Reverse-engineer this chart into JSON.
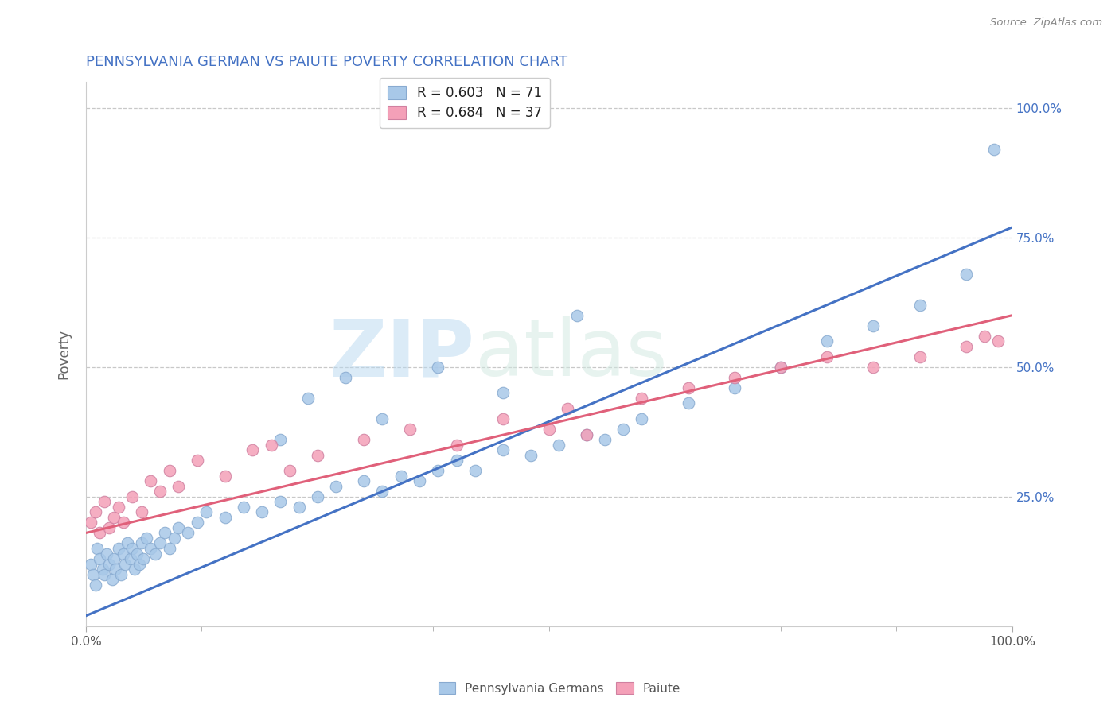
{
  "title": "PENNSYLVANIA GERMAN VS PAIUTE POVERTY CORRELATION CHART",
  "source_text": "Source: ZipAtlas.com",
  "ylabel": "Poverty",
  "watermark_zip": "ZIP",
  "watermark_atlas": "atlas",
  "xlim": [
    0.0,
    1.0
  ],
  "ylim": [
    0.0,
    1.05
  ],
  "blue_color": "#a8c8e8",
  "blue_edge": "#88aad0",
  "pink_color": "#f4a0b8",
  "pink_edge": "#d080a0",
  "line_blue": "#4472c4",
  "line_pink": "#e0607a",
  "title_color": "#4472c4",
  "title_fontsize": 13,
  "background_color": "#ffffff",
  "blue_line_x": [
    0.0,
    1.0
  ],
  "blue_line_y": [
    0.02,
    0.77
  ],
  "pink_line_x": [
    0.0,
    1.0
  ],
  "pink_line_y": [
    0.18,
    0.6
  ],
  "blue_scatter_x": [
    0.005,
    0.008,
    0.01,
    0.012,
    0.015,
    0.018,
    0.02,
    0.022,
    0.025,
    0.028,
    0.03,
    0.032,
    0.035,
    0.038,
    0.04,
    0.042,
    0.045,
    0.048,
    0.05,
    0.052,
    0.055,
    0.058,
    0.06,
    0.062,
    0.065,
    0.07,
    0.075,
    0.08,
    0.085,
    0.09,
    0.095,
    0.1,
    0.11,
    0.12,
    0.13,
    0.15,
    0.17,
    0.19,
    0.21,
    0.23,
    0.25,
    0.27,
    0.3,
    0.32,
    0.34,
    0.36,
    0.38,
    0.4,
    0.42,
    0.45,
    0.48,
    0.51,
    0.54,
    0.56,
    0.58,
    0.6,
    0.65,
    0.7,
    0.75,
    0.8,
    0.85,
    0.9,
    0.95,
    0.98,
    0.53,
    0.45,
    0.38,
    0.32,
    0.28,
    0.24,
    0.21
  ],
  "blue_scatter_y": [
    0.12,
    0.1,
    0.08,
    0.15,
    0.13,
    0.11,
    0.1,
    0.14,
    0.12,
    0.09,
    0.13,
    0.11,
    0.15,
    0.1,
    0.14,
    0.12,
    0.16,
    0.13,
    0.15,
    0.11,
    0.14,
    0.12,
    0.16,
    0.13,
    0.17,
    0.15,
    0.14,
    0.16,
    0.18,
    0.15,
    0.17,
    0.19,
    0.18,
    0.2,
    0.22,
    0.21,
    0.23,
    0.22,
    0.24,
    0.23,
    0.25,
    0.27,
    0.28,
    0.26,
    0.29,
    0.28,
    0.3,
    0.32,
    0.3,
    0.34,
    0.33,
    0.35,
    0.37,
    0.36,
    0.38,
    0.4,
    0.43,
    0.46,
    0.5,
    0.55,
    0.58,
    0.62,
    0.68,
    0.92,
    0.6,
    0.45,
    0.5,
    0.4,
    0.48,
    0.44,
    0.36
  ],
  "pink_scatter_x": [
    0.005,
    0.01,
    0.015,
    0.02,
    0.025,
    0.03,
    0.035,
    0.04,
    0.05,
    0.06,
    0.07,
    0.08,
    0.09,
    0.1,
    0.12,
    0.15,
    0.18,
    0.2,
    0.22,
    0.25,
    0.3,
    0.35,
    0.4,
    0.45,
    0.5,
    0.52,
    0.54,
    0.6,
    0.65,
    0.7,
    0.75,
    0.8,
    0.85,
    0.9,
    0.95,
    0.97,
    0.985
  ],
  "pink_scatter_y": [
    0.2,
    0.22,
    0.18,
    0.24,
    0.19,
    0.21,
    0.23,
    0.2,
    0.25,
    0.22,
    0.28,
    0.26,
    0.3,
    0.27,
    0.32,
    0.29,
    0.34,
    0.35,
    0.3,
    0.33,
    0.36,
    0.38,
    0.35,
    0.4,
    0.38,
    0.42,
    0.37,
    0.44,
    0.46,
    0.48,
    0.5,
    0.52,
    0.5,
    0.52,
    0.54,
    0.56,
    0.55
  ]
}
